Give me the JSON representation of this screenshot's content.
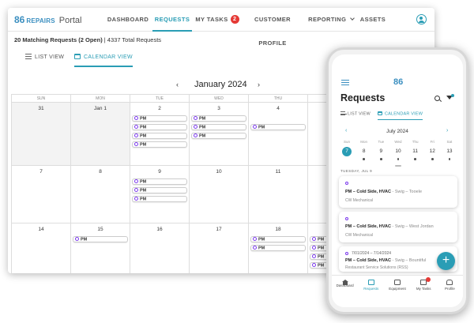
{
  "desktop": {
    "logo_brand": "86",
    "logo_brand_sub": "REPAIRS",
    "logo_portal": "Portal",
    "nav": {
      "dashboard": "DASHBOARD",
      "requests": "REQUESTS",
      "my_tasks": "MY TASKS",
      "my_tasks_badge": "2",
      "customer_profile": "CUSTOMER PROFILE",
      "reporting": "REPORTING",
      "assets": "ASSETS"
    },
    "summary_bold": "20 Matching Requests (2 Open)",
    "summary_rest": " | 4337 Total Requests",
    "view_tabs": {
      "list": "LIST VIEW",
      "calendar": "CALENDAR VIEW"
    },
    "calendar": {
      "month": "January 2024",
      "prev": "‹",
      "next": "›",
      "weekdays": [
        "SUN",
        "MON",
        "TUE",
        "WED",
        "THU"
      ],
      "weeks": [
        {
          "days": [
            "31",
            "Jan 1",
            "2",
            "3",
            "4"
          ]
        },
        {
          "days": [
            "7",
            "8",
            "9",
            "10",
            "11"
          ]
        },
        {
          "days": [
            "14",
            "15",
            "16",
            "17",
            "18"
          ]
        }
      ],
      "event_label": "PM"
    }
  },
  "phone": {
    "logo": "86",
    "title": "Requests",
    "tabs": {
      "list": "LIST VIEW",
      "calendar": "CALENDAR VIEW"
    },
    "month": "July 2024",
    "prev": "‹",
    "next": "›",
    "week": [
      {
        "dow": "Sun",
        "num": "7",
        "selected": true,
        "dot": false
      },
      {
        "dow": "Mon",
        "num": "8",
        "selected": false,
        "dot": true
      },
      {
        "dow": "Tue",
        "num": "9",
        "selected": false,
        "dot": true
      },
      {
        "dow": "Wed",
        "num": "10",
        "selected": false,
        "dot": true
      },
      {
        "dow": "Thu",
        "num": "11",
        "selected": false,
        "dot": true
      },
      {
        "dow": "Fri",
        "num": "12",
        "selected": false,
        "dot": true
      },
      {
        "dow": "Sat",
        "num": "13",
        "selected": false,
        "dot": true
      }
    ],
    "date_heading": "TUESDAY, JUL 9",
    "cards": [
      {
        "range": "",
        "title": "PM – Cold Side, HVAC",
        "location": " - Swig – Tooele",
        "vendor": "CW Mechanical"
      },
      {
        "range": "",
        "title": "PM – Cold Side, HVAC",
        "location": " - Swig – West Jordan",
        "vendor": "CW Mechanical"
      },
      {
        "range": "7/01/2024 – 7/14/2024",
        "title": "PM – Cold Side, HVAC",
        "location": " - Swig – Bountiful",
        "vendor": "Restaurant Service Solutions (RSS)"
      }
    ],
    "fab": "+",
    "bottom_nav": {
      "dashboard": "Dashboard",
      "requests": "Requests",
      "equipment": "Equipment",
      "my_tasks": "My Tasks",
      "profile": "Profile"
    }
  }
}
